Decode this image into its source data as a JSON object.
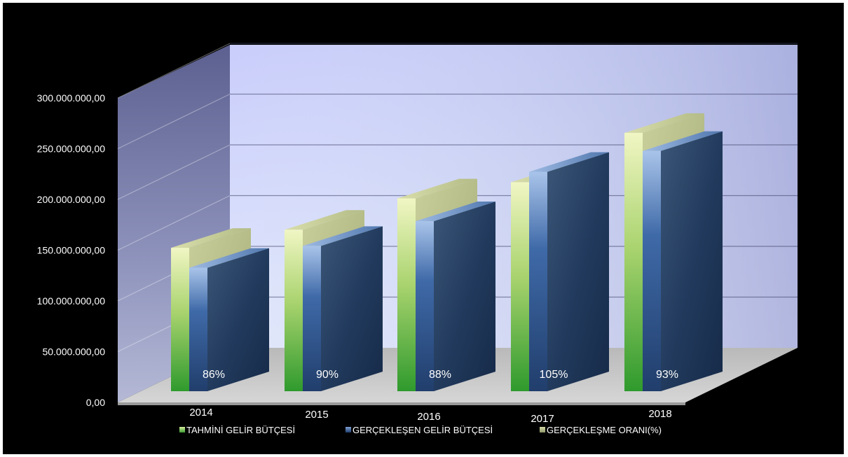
{
  "chart_data": {
    "type": "bar",
    "categories": [
      "2014",
      "2015",
      "2016",
      "2017",
      "2018"
    ],
    "series": [
      {
        "name": "TAHMİNİ GELİR BÜTÇESİ",
        "values": [
          151000000,
          170000000,
          203000000,
          220000000,
          272000000
        ]
      },
      {
        "name": "GERÇEKLEŞEN GELİR BÜTÇESİ",
        "values": [
          130000000,
          153000000,
          179000000,
          231000000,
          253000000
        ]
      },
      {
        "name": "GERÇEKLEŞME ORANI(%)",
        "values": [
          86,
          90,
          88,
          105,
          93
        ]
      }
    ],
    "data_labels": [
      "86%",
      "90%",
      "88%",
      "105%",
      "93%"
    ],
    "y_ticks": [
      "0,00",
      "50.000.000,00",
      "100.000.000,00",
      "150.000.000,00",
      "200.000.000,00",
      "250.000.000,00",
      "300.000.000,00"
    ],
    "ylim": [
      0,
      300000000
    ],
    "grid": true,
    "legend_position": "bottom",
    "style": "3d-column",
    "colors": {
      "background": "#000000",
      "tahmini": "#6fb43f",
      "gerceklesen": "#2c4f86",
      "oran": "#a3b07f"
    }
  }
}
